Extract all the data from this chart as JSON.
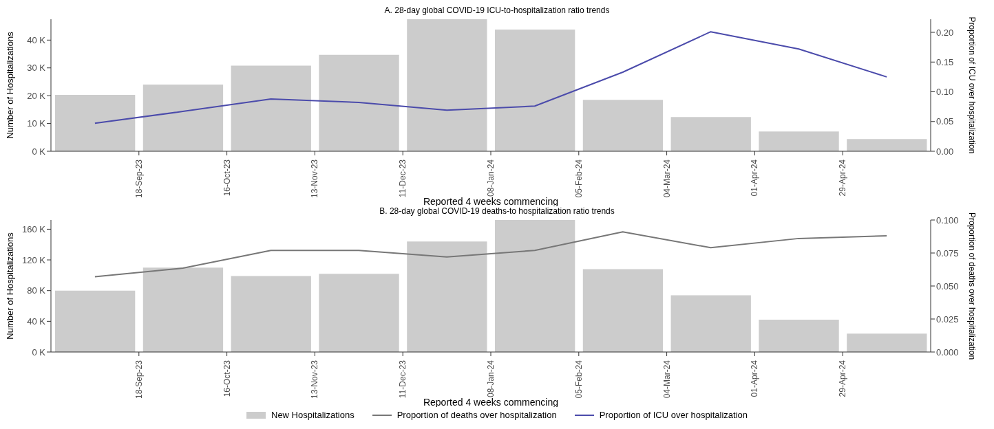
{
  "chart_data": [
    {
      "type": "bar",
      "title": "A. 28-day global COVID-19 ICU-to-hospitalization ratio trends",
      "xlabel": "Reported 4 weeks commencing",
      "ylabel": "Number of Hospitalizations",
      "y2label": "Proportion of ICU over hospitalization",
      "x": [
        "2023-09-04",
        "2023-10-02",
        "2023-10-30",
        "2023-11-27",
        "2023-12-25",
        "2024-01-22",
        "2024-02-19",
        "2024-03-18",
        "2024-04-15",
        "2024-05-13"
      ],
      "series": [
        {
          "name": "New Hospitalizations",
          "color": "#cccccc",
          "values": [
            20300,
            24000,
            30800,
            34700,
            47500,
            43800,
            18500,
            12300,
            7100,
            4400
          ]
        },
        {
          "name": "Proportion of ICU over hospitalization",
          "type": "line",
          "axis": "y2",
          "color": "#4b4bab",
          "values": [
            0.047,
            0.067,
            0.088,
            0.082,
            0.069,
            0.076,
            0.133,
            0.201,
            0.172,
            0.125
          ]
        }
      ],
      "xlim": [
        "2023-08-21",
        "2024-05-27"
      ],
      "xticks": [
        {
          "value": "2023-09-18",
          "label": "18-Sep-23"
        },
        {
          "value": "2023-10-16",
          "label": "16-Oct-23"
        },
        {
          "value": "2023-11-13",
          "label": "13-Nov-23"
        },
        {
          "value": "2023-12-11",
          "label": "11-Dec-23"
        },
        {
          "value": "2024-01-08",
          "label": "08-Jan-24"
        },
        {
          "value": "2024-02-05",
          "label": "05-Feb-24"
        },
        {
          "value": "2024-03-04",
          "label": "04-Mar-24"
        },
        {
          "value": "2024-04-01",
          "label": "01-Apr-24"
        },
        {
          "value": "2024-04-29",
          "label": "29-Apr-24"
        }
      ],
      "ylim": [
        0,
        47500
      ],
      "yticks": [
        {
          "value": 0,
          "label": "0 K"
        },
        {
          "value": 10000,
          "label": "10 K"
        },
        {
          "value": 20000,
          "label": "20 K"
        },
        {
          "value": 30000,
          "label": "30 K"
        },
        {
          "value": 40000,
          "label": "40 K"
        }
      ],
      "y2lim": [
        0,
        0.222
      ],
      "y2ticks": [
        {
          "value": 0,
          "label": "0.00"
        },
        {
          "value": 0.05,
          "label": "0.05"
        },
        {
          "value": 0.1,
          "label": "0.10"
        },
        {
          "value": 0.15,
          "label": "0.15"
        },
        {
          "value": 0.2,
          "label": "0.20"
        }
      ],
      "grid": false,
      "legend": "bottom"
    },
    {
      "type": "bar",
      "title": "B. 28-day global COVID-19 deaths-to hospitalization ratio trends",
      "xlabel": "Reported 4 weeks commencing",
      "ylabel": "Number of Hospitalizations",
      "y2label": "Proportion of deaths over hospitalization",
      "x": [
        "2023-09-04",
        "2023-10-02",
        "2023-10-30",
        "2023-11-27",
        "2023-12-25",
        "2024-01-22",
        "2024-02-19",
        "2024-03-18",
        "2024-04-15",
        "2024-05-13"
      ],
      "series": [
        {
          "name": "New Hospitalizations",
          "color": "#cccccc",
          "values": [
            80000,
            110000,
            99000,
            102000,
            144000,
            172000,
            108000,
            74000,
            42000,
            24000
          ]
        },
        {
          "name": "Proportion of deaths over hospitalization",
          "type": "line",
          "axis": "y2",
          "color": "#777777",
          "values": [
            0.057,
            0.0635,
            0.077,
            0.077,
            0.072,
            0.077,
            0.091,
            0.079,
            0.086,
            0.088
          ]
        }
      ],
      "xlim": [
        "2023-08-21",
        "2024-05-27"
      ],
      "xticks": [
        {
          "value": "2023-09-18",
          "label": "18-Sep-23"
        },
        {
          "value": "2023-10-16",
          "label": "16-Oct-23"
        },
        {
          "value": "2023-11-13",
          "label": "13-Nov-23"
        },
        {
          "value": "2023-12-11",
          "label": "11-Dec-23"
        },
        {
          "value": "2024-01-08",
          "label": "08-Jan-24"
        },
        {
          "value": "2024-02-05",
          "label": "05-Feb-24"
        },
        {
          "value": "2024-03-04",
          "label": "04-Mar-24"
        },
        {
          "value": "2024-04-01",
          "label": "01-Apr-24"
        },
        {
          "value": "2024-04-29",
          "label": "29-Apr-24"
        }
      ],
      "ylim": [
        0,
        172000
      ],
      "yticks": [
        {
          "value": 0,
          "label": "0 K"
        },
        {
          "value": 40000,
          "label": "40 K"
        },
        {
          "value": 80000,
          "label": "80 K"
        },
        {
          "value": 120000,
          "label": "120 K"
        },
        {
          "value": 160000,
          "label": "160 K"
        }
      ],
      "y2lim": [
        0,
        0.1
      ],
      "y2ticks": [
        {
          "value": 0,
          "label": "0.000"
        },
        {
          "value": 0.025,
          "label": "0.025"
        },
        {
          "value": 0.05,
          "label": "0.050"
        },
        {
          "value": 0.075,
          "label": "0.075"
        },
        {
          "value": 0.1,
          "label": "0.100"
        }
      ],
      "grid": false,
      "legend": "bottom"
    }
  ]
}
